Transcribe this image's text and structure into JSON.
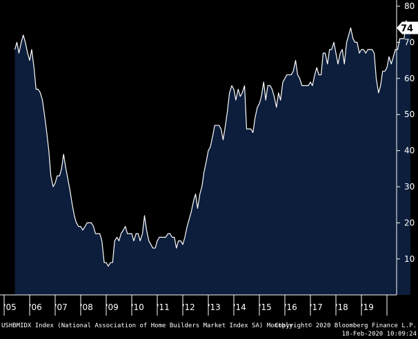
{
  "chart_data": {
    "type": "area",
    "title": "",
    "xlabel": "",
    "ylabel": "",
    "ylim": [
      0,
      82
    ],
    "y_ticks": [
      10,
      20,
      30,
      40,
      50,
      60,
      70,
      80
    ],
    "x_ticks": [
      "'05",
      "'06",
      "'07",
      "'08",
      "'09",
      "'10",
      "'11",
      "'12",
      "'13",
      "'14",
      "'15",
      "'16",
      "'17",
      "'18",
      "'19"
    ],
    "last_value_label": "74",
    "footer_left": "USHBMIDX Index (National Association of Home Builders Market Index SA)  Monthly",
    "footer_right_line1": "Copyright© 2020 Bloomberg Finance L.P.",
    "footer_right_line2": "18-Feb-2020 10:09:24",
    "colors": {
      "background": "#000000",
      "fill": "#0c1e3b",
      "line": "#ffffff",
      "label_box": "#ffffff",
      "label_text": "#000000"
    },
    "series": [
      {
        "values": [
          [
            2004.92,
            68
          ],
          [
            2005.0,
            70
          ],
          [
            2005.08,
            67
          ],
          [
            2005.17,
            70
          ],
          [
            2005.25,
            72
          ],
          [
            2005.33,
            70
          ],
          [
            2005.42,
            67
          ],
          [
            2005.5,
            65
          ],
          [
            2005.58,
            68
          ],
          [
            2005.67,
            63
          ],
          [
            2005.75,
            57
          ],
          [
            2005.83,
            57
          ],
          [
            2005.92,
            56
          ],
          [
            2006.0,
            54
          ],
          [
            2006.08,
            50
          ],
          [
            2006.17,
            45
          ],
          [
            2006.25,
            40
          ],
          [
            2006.33,
            33
          ],
          [
            2006.42,
            30
          ],
          [
            2006.5,
            31
          ],
          [
            2006.58,
            33
          ],
          [
            2006.67,
            33
          ],
          [
            2006.75,
            35
          ],
          [
            2006.83,
            39
          ],
          [
            2006.92,
            35
          ],
          [
            2007.0,
            32
          ],
          [
            2007.08,
            29
          ],
          [
            2007.17,
            25
          ],
          [
            2007.25,
            22
          ],
          [
            2007.33,
            20
          ],
          [
            2007.42,
            19
          ],
          [
            2007.5,
            19
          ],
          [
            2007.58,
            18
          ],
          [
            2007.67,
            19
          ],
          [
            2007.75,
            20
          ],
          [
            2007.83,
            20
          ],
          [
            2007.92,
            20
          ],
          [
            2008.0,
            19
          ],
          [
            2008.08,
            17
          ],
          [
            2008.17,
            17
          ],
          [
            2008.25,
            17
          ],
          [
            2008.33,
            15
          ],
          [
            2008.42,
            9
          ],
          [
            2008.5,
            9
          ],
          [
            2008.58,
            8
          ],
          [
            2008.67,
            9
          ],
          [
            2008.75,
            9
          ],
          [
            2008.83,
            15
          ],
          [
            2008.92,
            16
          ],
          [
            2009.0,
            15
          ],
          [
            2009.08,
            17
          ],
          [
            2009.17,
            18
          ],
          [
            2009.25,
            19
          ],
          [
            2009.33,
            17
          ],
          [
            2009.42,
            17
          ],
          [
            2009.5,
            17
          ],
          [
            2009.58,
            15
          ],
          [
            2009.67,
            17
          ],
          [
            2009.75,
            17
          ],
          [
            2009.83,
            15
          ],
          [
            2009.92,
            17
          ],
          [
            2010.0,
            22
          ],
          [
            2010.08,
            18
          ],
          [
            2010.17,
            15
          ],
          [
            2010.25,
            14
          ],
          [
            2010.33,
            13
          ],
          [
            2010.42,
            13
          ],
          [
            2010.5,
            15
          ],
          [
            2010.58,
            16
          ],
          [
            2010.67,
            16
          ],
          [
            2010.75,
            16
          ],
          [
            2010.83,
            16
          ],
          [
            2010.92,
            17
          ],
          [
            2011.0,
            17
          ],
          [
            2011.08,
            16
          ],
          [
            2011.17,
            16
          ],
          [
            2011.25,
            13
          ],
          [
            2011.33,
            15
          ],
          [
            2011.42,
            15
          ],
          [
            2011.5,
            14
          ],
          [
            2011.58,
            16
          ],
          [
            2011.67,
            19
          ],
          [
            2011.75,
            21
          ],
          [
            2011.83,
            23
          ],
          [
            2011.92,
            26
          ],
          [
            2012.0,
            28
          ],
          [
            2012.08,
            24
          ],
          [
            2012.17,
            28
          ],
          [
            2012.25,
            30
          ],
          [
            2012.33,
            34
          ],
          [
            2012.42,
            37
          ],
          [
            2012.5,
            40
          ],
          [
            2012.58,
            41
          ],
          [
            2012.67,
            44
          ],
          [
            2012.75,
            47
          ],
          [
            2012.83,
            47
          ],
          [
            2012.92,
            47
          ],
          [
            2013.0,
            46
          ],
          [
            2013.08,
            43
          ],
          [
            2013.17,
            47
          ],
          [
            2013.25,
            51
          ],
          [
            2013.33,
            56
          ],
          [
            2013.42,
            58
          ],
          [
            2013.5,
            57
          ],
          [
            2013.58,
            54
          ],
          [
            2013.67,
            57
          ],
          [
            2013.75,
            55
          ],
          [
            2013.83,
            56
          ],
          [
            2013.92,
            58
          ],
          [
            2014.0,
            46
          ],
          [
            2014.08,
            46
          ],
          [
            2014.17,
            46
          ],
          [
            2014.25,
            45
          ],
          [
            2014.33,
            49
          ],
          [
            2014.42,
            52
          ],
          [
            2014.5,
            53
          ],
          [
            2014.58,
            55
          ],
          [
            2014.67,
            59
          ],
          [
            2014.75,
            54
          ],
          [
            2014.83,
            58
          ],
          [
            2014.92,
            58
          ],
          [
            2015.0,
            57
          ],
          [
            2015.08,
            55
          ],
          [
            2015.17,
            52
          ],
          [
            2015.25,
            56
          ],
          [
            2015.33,
            54
          ],
          [
            2015.42,
            59
          ],
          [
            2015.5,
            60
          ],
          [
            2015.58,
            61
          ],
          [
            2015.67,
            61
          ],
          [
            2015.75,
            61
          ],
          [
            2015.83,
            62
          ],
          [
            2015.92,
            65
          ],
          [
            2016.0,
            61
          ],
          [
            2016.08,
            60
          ],
          [
            2016.17,
            58
          ],
          [
            2016.25,
            58
          ],
          [
            2016.33,
            58
          ],
          [
            2016.42,
            58
          ],
          [
            2016.5,
            59
          ],
          [
            2016.58,
            58
          ],
          [
            2016.67,
            61
          ],
          [
            2016.75,
            63
          ],
          [
            2016.83,
            61
          ],
          [
            2016.92,
            61
          ],
          [
            2017.0,
            67
          ],
          [
            2017.08,
            67
          ],
          [
            2017.17,
            64
          ],
          [
            2017.25,
            68
          ],
          [
            2017.33,
            68
          ],
          [
            2017.42,
            70
          ],
          [
            2017.5,
            67
          ],
          [
            2017.58,
            64
          ],
          [
            2017.67,
            67
          ],
          [
            2017.75,
            68
          ],
          [
            2017.83,
            64
          ],
          [
            2017.92,
            70
          ],
          [
            2018.0,
            72
          ],
          [
            2018.08,
            74
          ],
          [
            2018.17,
            71
          ],
          [
            2018.25,
            70
          ],
          [
            2018.33,
            70
          ],
          [
            2018.42,
            67
          ],
          [
            2018.5,
            68
          ],
          [
            2018.58,
            68
          ],
          [
            2018.67,
            67
          ],
          [
            2018.75,
            68
          ],
          [
            2018.83,
            68
          ],
          [
            2018.92,
            68
          ],
          [
            2019.0,
            67
          ],
          [
            2019.08,
            60
          ],
          [
            2019.17,
            56
          ],
          [
            2019.25,
            58
          ],
          [
            2019.33,
            62
          ],
          [
            2019.42,
            62
          ],
          [
            2019.5,
            63
          ],
          [
            2019.58,
            66
          ],
          [
            2019.67,
            64
          ],
          [
            2019.75,
            66
          ],
          [
            2019.83,
            68
          ],
          [
            2019.92,
            68
          ],
          [
            2020.0,
            71
          ],
          [
            2020.08,
            71
          ],
          [
            2020.17,
            71
          ],
          [
            2020.25,
            76
          ],
          [
            2020.33,
            75
          ],
          [
            2020.42,
            74
          ]
        ]
      }
    ]
  }
}
